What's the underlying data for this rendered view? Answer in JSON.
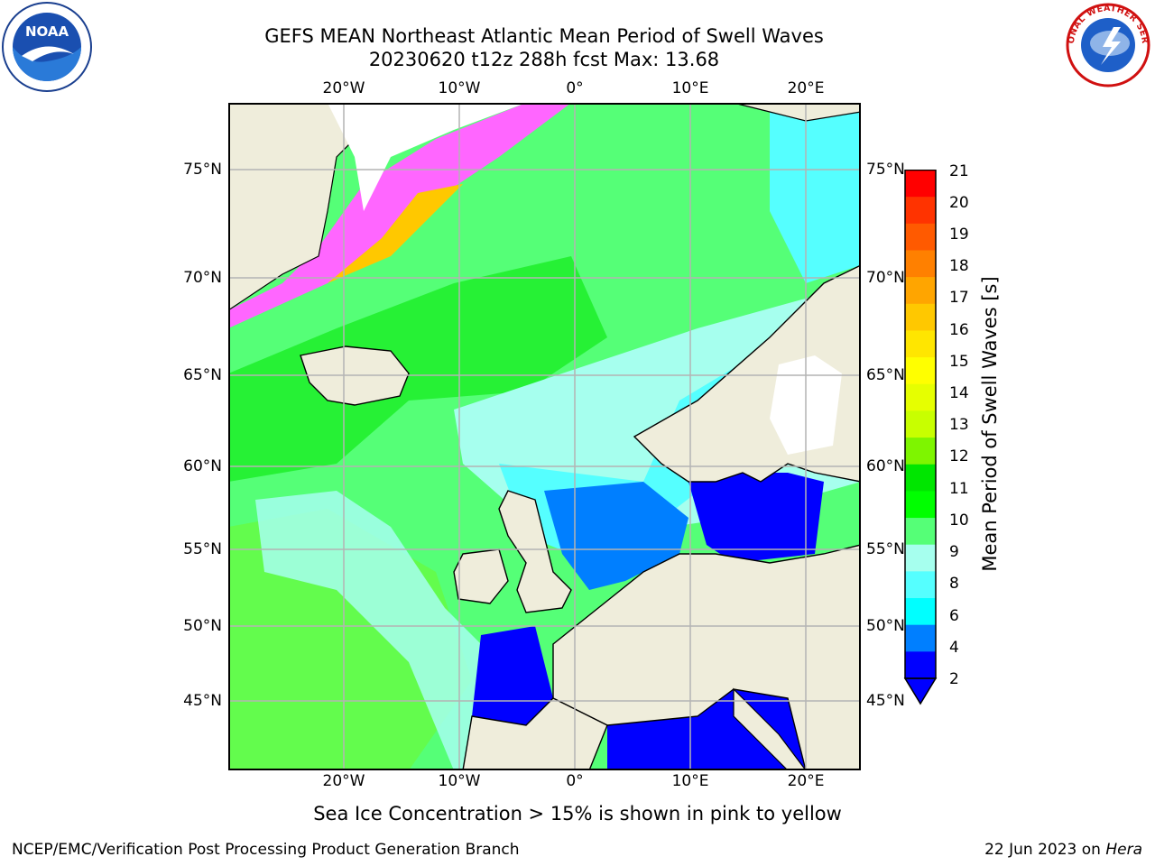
{
  "title": {
    "line1": "GEFS MEAN Northeast Atlantic Mean Period of Swell Waves",
    "line2": "20230620 t12z 288h fcst   Max: 13.68"
  },
  "axes": {
    "lon_ticks": [
      "20°W",
      "10°W",
      "0°",
      "10°E",
      "20°E"
    ],
    "lon_values": [
      -20,
      -10,
      0,
      10,
      20
    ],
    "lat_ticks": [
      "75°N",
      "70°N",
      "65°N",
      "60°N",
      "55°N",
      "50°N",
      "45°N"
    ],
    "lat_values": [
      75,
      70,
      65,
      60,
      55,
      50,
      45
    ],
    "lon_range": [
      -29.5,
      24.5
    ],
    "lat_range": [
      41,
      78
    ]
  },
  "colorbar": {
    "title": "Mean Period of Swell Waves [s]",
    "levels": [
      "21",
      "20",
      "19",
      "18",
      "17",
      "16",
      "15",
      "14",
      "13",
      "12",
      "11",
      "10",
      "9",
      "8",
      "6",
      "4",
      "2"
    ],
    "colors": [
      "#ff0000",
      "#ff3300",
      "#ff5a00",
      "#ff8000",
      "#ffa500",
      "#ffc800",
      "#ffe600",
      "#ffff00",
      "#e6ff00",
      "#c8ff00",
      "#7ef500",
      "#00e600",
      "#00ff00",
      "#55ff77",
      "#a6ffee",
      "#55ffff",
      "#00ffff",
      "#007fff",
      "#0000ff"
    ]
  },
  "annotation": "Sea Ice Concentration > 15% is shown in pink to yellow",
  "footer": {
    "left": "NCEP/EMC/Verification Post Processing Product Generation Branch",
    "right_date": "22 Jun 2023 on ",
    "right_host": "Hera"
  },
  "logos": {
    "left_text": "NOAA",
    "right_ring_text": "NATIONAL WEATHER SERVICE"
  },
  "colors": {
    "land": "#efeddb",
    "grid": "#b4b4b4"
  }
}
